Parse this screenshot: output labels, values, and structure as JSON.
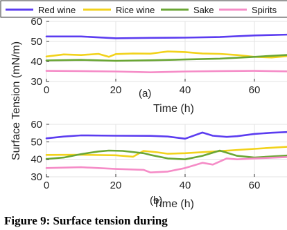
{
  "caption": "Figure 9: Surface tension during",
  "shared_ylabel": "Surface Tension (mN/m)",
  "colors": {
    "Red wine": "#5b3cf0",
    "Rice wine": "#f2d21b",
    "Sake": "#6aa634",
    "Spirits": "#f58cc7"
  },
  "legend": [
    "Red wine",
    "Rice wine",
    "Sake",
    "Spirits"
  ],
  "chart_data": [
    {
      "type": "line",
      "panel_label": "(a)",
      "xlabel": "Time (h)",
      "xlim": [
        0,
        72
      ],
      "ylim": [
        30,
        60
      ],
      "xticks": [
        0,
        20,
        40,
        60
      ],
      "yticks": [
        30,
        40,
        50,
        60
      ],
      "grid": true,
      "series": [
        {
          "name": "Red wine",
          "x": [
            0,
            10,
            20,
            30,
            40,
            50,
            60,
            72
          ],
          "values": [
            52.5,
            52.5,
            51.6,
            51.8,
            51.9,
            52.2,
            53.0,
            53.5
          ]
        },
        {
          "name": "Rice wine",
          "x": [
            0,
            5,
            10,
            15,
            18,
            20,
            25,
            30,
            35,
            40,
            45,
            50,
            55,
            60,
            65,
            72
          ],
          "values": [
            42.5,
            43.5,
            43.2,
            43.8,
            42.3,
            43.7,
            44.0,
            43.9,
            45.0,
            44.7,
            44.0,
            43.8,
            43.2,
            42.3,
            42.0,
            43.0
          ]
        },
        {
          "name": "Sake",
          "x": [
            0,
            10,
            20,
            30,
            40,
            50,
            60,
            72
          ],
          "values": [
            40.5,
            40.8,
            40.3,
            40.6,
            41.0,
            41.4,
            42.3,
            43.5
          ]
        },
        {
          "name": "Spirits",
          "x": [
            0,
            10,
            20,
            30,
            40,
            50,
            60,
            72
          ],
          "values": [
            35.3,
            35.2,
            35.0,
            34.6,
            35.0,
            35.2,
            35.3,
            35.0
          ]
        }
      ]
    },
    {
      "type": "line",
      "panel_label": "(b)",
      "xlabel": "Time (h)",
      "xlim": [
        0,
        72
      ],
      "ylim": [
        30,
        60
      ],
      "xticks": [
        0,
        20,
        40,
        60
      ],
      "yticks": [
        30,
        40,
        50,
        60
      ],
      "grid": true,
      "series": [
        {
          "name": "Red wine",
          "x": [
            0,
            5,
            10,
            20,
            30,
            35,
            40,
            45,
            48,
            52,
            55,
            60,
            65,
            72
          ],
          "values": [
            52.0,
            53.0,
            53.7,
            53.5,
            53.4,
            53.0,
            51.8,
            55.3,
            53.5,
            52.8,
            53.2,
            54.5,
            55.2,
            55.8
          ]
        },
        {
          "name": "Rice wine",
          "x": [
            0,
            10,
            20,
            25,
            28,
            32,
            35,
            40,
            50,
            60,
            72
          ],
          "values": [
            42.5,
            42.6,
            42.3,
            41.5,
            44.8,
            44.0,
            43.2,
            43.5,
            44.7,
            46.0,
            47.5
          ]
        },
        {
          "name": "Sake",
          "x": [
            0,
            5,
            10,
            15,
            18,
            22,
            28,
            30,
            35,
            40,
            45,
            50,
            55,
            60,
            72
          ],
          "values": [
            40.2,
            41.0,
            43.0,
            44.5,
            45.0,
            44.8,
            43.5,
            42.5,
            40.5,
            40.0,
            42.0,
            45.0,
            42.0,
            41.0,
            42.5
          ]
        },
        {
          "name": "Spirits",
          "x": [
            0,
            10,
            20,
            28,
            30,
            35,
            40,
            45,
            48,
            52,
            55,
            60,
            72
          ],
          "values": [
            35.0,
            35.5,
            34.5,
            34.0,
            32.5,
            33.0,
            35.0,
            38.0,
            37.0,
            40.5,
            40.0,
            40.5,
            41.5
          ]
        }
      ]
    }
  ]
}
